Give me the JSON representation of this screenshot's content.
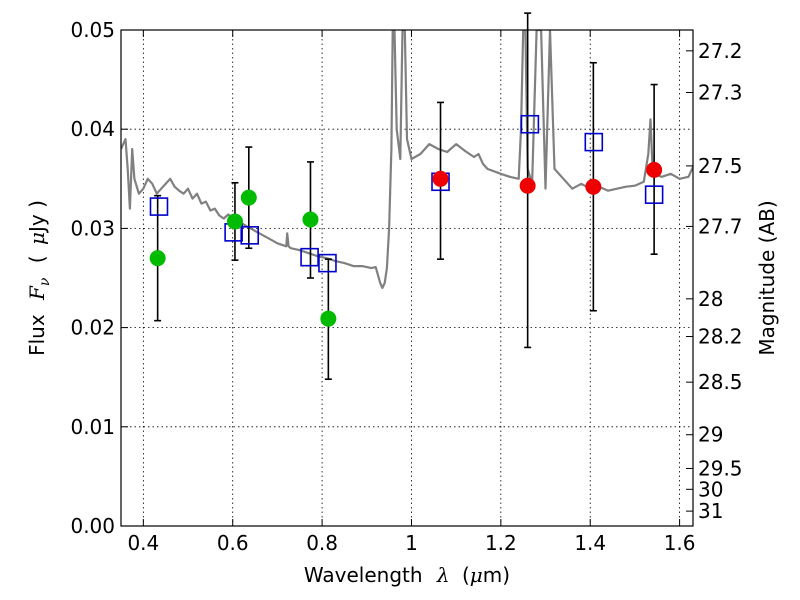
{
  "chart_data": {
    "type": "scatter",
    "title": "",
    "xlabel": {
      "prefix": "Wavelength",
      "symbol": "λ",
      "unit_open": "(",
      "unit_mu": "μ",
      "unit_rest": "m)"
    },
    "ylabel": {
      "prefix": "Flux",
      "symbol": "F",
      "subscript": "ν",
      "unit_open": "(",
      "unit_mu": "μ",
      "unit_rest": "Jy )"
    },
    "y2label": "Magnitude (AB)",
    "xlim": [
      0.35,
      1.63
    ],
    "ylim": [
      0.0,
      0.05
    ],
    "grid": true,
    "x_ticks": [
      {
        "value": 0.4,
        "label": "0.4"
      },
      {
        "value": 0.6,
        "label": "0.6"
      },
      {
        "value": 0.8,
        "label": "0.8"
      },
      {
        "value": 1.0,
        "label": "1"
      },
      {
        "value": 1.2,
        "label": "1.2"
      },
      {
        "value": 1.4,
        "label": "1.4"
      },
      {
        "value": 1.6,
        "label": "1.6"
      }
    ],
    "y_ticks": [
      {
        "value": 0.0,
        "label": "0.00"
      },
      {
        "value": 0.01,
        "label": "0.01"
      },
      {
        "value": 0.02,
        "label": "0.02"
      },
      {
        "value": 0.03,
        "label": "0.03"
      },
      {
        "value": 0.04,
        "label": "0.04"
      },
      {
        "value": 0.05,
        "label": "0.05"
      }
    ],
    "y2_ticks": [
      {
        "label": "27.2",
        "flux": 0.0479
      },
      {
        "label": "27.3",
        "flux": 0.0437
      },
      {
        "label": "27.5",
        "flux": 0.0363
      },
      {
        "label": "27.7",
        "flux": 0.0302
      },
      {
        "label": "28",
        "flux": 0.0229
      },
      {
        "label": "28.2",
        "flux": 0.0191
      },
      {
        "label": "28.5",
        "flux": 0.0145
      },
      {
        "label": "29",
        "flux": 0.0092
      },
      {
        "label": "29.5",
        "flux": 0.0058
      },
      {
        "label": "30",
        "flux": 0.0037
      },
      {
        "label": "31",
        "flux": 0.0015
      }
    ],
    "series": [
      {
        "kind": "model-spectrum",
        "color": "#808080",
        "x": [
          0.35,
          0.36,
          0.365,
          0.37,
          0.375,
          0.38,
          0.39,
          0.4,
          0.41,
          0.42,
          0.43,
          0.44,
          0.45,
          0.46,
          0.47,
          0.48,
          0.49,
          0.5,
          0.51,
          0.52,
          0.53,
          0.54,
          0.55,
          0.56,
          0.57,
          0.58,
          0.59,
          0.6,
          0.62,
          0.64,
          0.66,
          0.68,
          0.7,
          0.72,
          0.722,
          0.725,
          0.73,
          0.75,
          0.77,
          0.79,
          0.81,
          0.83,
          0.85,
          0.87,
          0.89,
          0.91,
          0.92,
          0.93,
          0.935,
          0.94,
          0.945,
          0.95,
          0.955,
          0.958,
          0.962,
          0.967,
          0.975,
          0.98,
          0.985,
          0.99,
          1.0,
          1.02,
          1.04,
          1.06,
          1.08,
          1.1,
          1.12,
          1.14,
          1.15,
          1.16,
          1.17,
          1.2,
          1.22,
          1.24,
          1.245,
          1.25,
          1.255,
          1.26,
          1.27,
          1.28,
          1.29,
          1.3,
          1.31,
          1.32,
          1.34,
          1.36,
          1.38,
          1.4,
          1.42,
          1.44,
          1.46,
          1.48,
          1.5,
          1.52,
          1.53,
          1.535,
          1.54,
          1.56,
          1.58,
          1.6,
          1.62,
          1.63
        ],
        "y": [
          0.038,
          0.039,
          0.036,
          0.032,
          0.038,
          0.035,
          0.0335,
          0.034,
          0.035,
          0.0345,
          0.0335,
          0.034,
          0.0345,
          0.035,
          0.0342,
          0.0338,
          0.0335,
          0.034,
          0.033,
          0.0335,
          0.0325,
          0.0327,
          0.0318,
          0.032,
          0.0313,
          0.031,
          0.0314,
          0.031,
          0.0305,
          0.03,
          0.0295,
          0.029,
          0.0285,
          0.0282,
          0.0295,
          0.0282,
          0.028,
          0.0278,
          0.0275,
          0.0272,
          0.027,
          0.0267,
          0.0265,
          0.0262,
          0.0262,
          0.026,
          0.0261,
          0.0245,
          0.024,
          0.0245,
          0.026,
          0.03,
          0.038,
          0.05,
          0.05,
          0.04,
          0.037,
          0.05,
          0.05,
          0.039,
          0.037,
          0.0375,
          0.0385,
          0.038,
          0.0377,
          0.0385,
          0.0378,
          0.0372,
          0.0375,
          0.0365,
          0.036,
          0.0355,
          0.0352,
          0.035,
          0.04,
          0.05,
          0.05,
          0.036,
          0.0345,
          0.05,
          0.05,
          0.034,
          0.05,
          0.036,
          0.035,
          0.034,
          0.0345,
          0.034,
          0.0342,
          0.0338,
          0.034,
          0.0342,
          0.0343,
          0.0347,
          0.0375,
          0.041,
          0.0355,
          0.0352,
          0.0355,
          0.035,
          0.0352,
          0.0362
        ]
      },
      {
        "kind": "model-photometry",
        "marker": "open-square",
        "color": "#0000cc",
        "x": [
          0.435,
          0.602,
          0.638,
          0.772,
          0.812,
          1.065,
          1.265,
          1.408,
          1.543
        ],
        "y": [
          0.0322,
          0.0296,
          0.0293,
          0.0271,
          0.0265,
          0.0347,
          0.0405,
          0.0387,
          0.0334
        ]
      },
      {
        "kind": "observed-optical",
        "marker": "filled-circle",
        "color": "#00bb00",
        "x": [
          0.432,
          0.605,
          0.636,
          0.774,
          0.814
        ],
        "y": [
          0.027,
          0.0307,
          0.0331,
          0.0309,
          0.0209
        ],
        "err_low": [
          0.0207,
          0.0268,
          0.028,
          0.025,
          0.0148
        ],
        "err_high": [
          0.0333,
          0.0346,
          0.0382,
          0.0367,
          0.0269
        ]
      },
      {
        "kind": "observed-nir",
        "marker": "filled-circle",
        "color": "#ee0000",
        "x": [
          1.065,
          1.26,
          1.407,
          1.543
        ],
        "y": [
          0.035,
          0.0343,
          0.0342,
          0.0359
        ],
        "err_low": [
          0.0269,
          0.018,
          0.0217,
          0.0274
        ],
        "err_high": [
          0.0427,
          0.0517,
          0.0467,
          0.0445
        ]
      }
    ]
  }
}
